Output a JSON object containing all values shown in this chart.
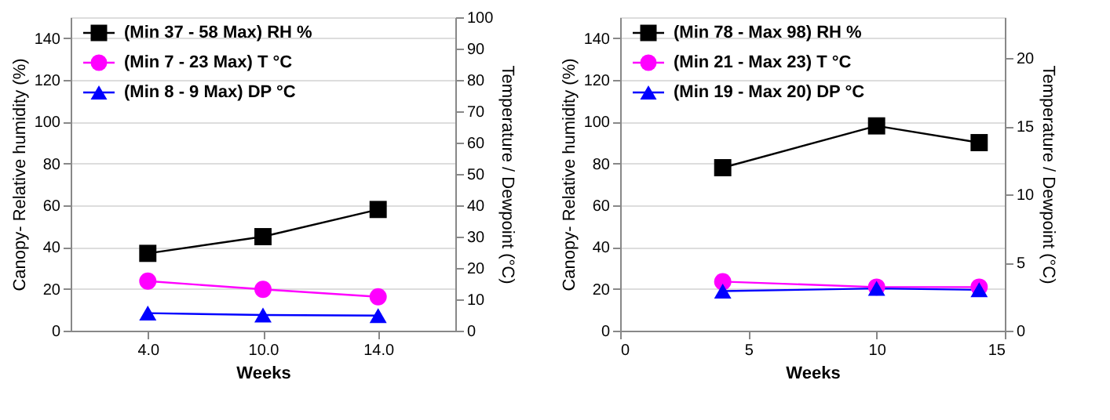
{
  "chart_data": [
    {
      "type": "line",
      "categories": [
        "4.0",
        "10.0",
        "14.0"
      ],
      "xlabel": "Weeks",
      "ylabel": "Canopy- Relative humidity (%)",
      "y2label": "Temperature / Dewpoint (°C)",
      "ylim": [
        0,
        150
      ],
      "yticks": [
        0,
        20,
        40,
        60,
        80,
        100,
        120,
        140
      ],
      "y2lim": [
        0,
        100
      ],
      "y2ticks": [
        0,
        10,
        20,
        30,
        40,
        50,
        60,
        70,
        80,
        90,
        100
      ],
      "grid": "y",
      "legend": "top left",
      "series": [
        {
          "name": "(Min 37 - 58 Max) RH %",
          "color": "#000000",
          "marker": "square",
          "values": [
            37,
            45,
            58
          ]
        },
        {
          "name": "(Min 7 - 23 Max)  T °C",
          "color": "#ff00ff",
          "marker": "circle",
          "axis": "y2",
          "values": [
            15.8,
            13.2,
            10.8
          ]
        },
        {
          "name": "(Min 8 - 9  Max) DP °C",
          "color": "#0000ff",
          "marker": "triangle",
          "axis": "y2",
          "values": [
            5.6,
            5.0,
            4.8
          ]
        }
      ]
    },
    {
      "type": "line",
      "x": [
        4,
        10,
        14
      ],
      "xlim": [
        0,
        15
      ],
      "xticks": [
        0,
        5,
        10,
        15
      ],
      "xlabel": "Weeks",
      "ylabel": "Canopy- Relative humidity (%)",
      "y2label": "Temperature / Dewpoint (°C)",
      "ylim": [
        0,
        150
      ],
      "yticks": [
        0,
        20,
        40,
        60,
        80,
        100,
        120,
        140
      ],
      "y2lim": [
        0,
        23
      ],
      "y2ticks": [
        0,
        5,
        10,
        15,
        20
      ],
      "grid": "y",
      "legend": "top left",
      "series": [
        {
          "name": "(Min 78 - Max 98) RH %",
          "color": "#000000",
          "marker": "square",
          "values": [
            78,
            98,
            90
          ]
        },
        {
          "name": "(Min 21 - Max 23) T °C",
          "color": "#ff00ff",
          "marker": "circle",
          "axis": "y2",
          "values": [
            3.6,
            3.2,
            3.2
          ]
        },
        {
          "name": "(Min 19 - Max 20) DP °C",
          "color": "#0000ff",
          "marker": "triangle",
          "axis": "y2",
          "values": [
            2.9,
            3.1,
            3.0
          ]
        }
      ]
    }
  ]
}
